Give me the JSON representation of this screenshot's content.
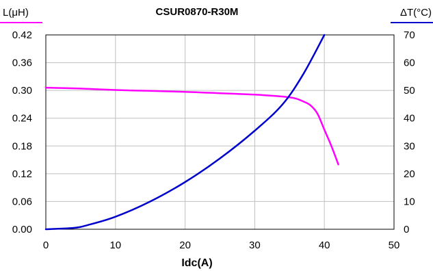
{
  "chart_data": {
    "type": "line",
    "title": "CSUR0870-R30M",
    "xlabel": "Idc(A)",
    "ylabel_left": "L(μH)",
    "ylabel_right": "ΔT(°C)",
    "xlim": [
      0,
      50
    ],
    "ylim_left": [
      0,
      0.42
    ],
    "ylim_right": [
      0,
      70
    ],
    "x_ticks": [
      "0",
      "10",
      "20",
      "30",
      "40",
      "50"
    ],
    "y_left_ticks": [
      "0.00",
      "0.06",
      "0.12",
      "0.18",
      "0.24",
      "0.30",
      "0.36",
      "0.42"
    ],
    "y_right_ticks": [
      "0",
      "10",
      "20",
      "30",
      "40",
      "50",
      "60",
      "70"
    ],
    "grid": true,
    "colors": {
      "inductance": "#ff00ff",
      "temperature": "#0000cc",
      "grid": "#c0c0c0",
      "axis": "#000000"
    },
    "series": [
      {
        "key": "inductance",
        "axis": "left",
        "x": [
          0,
          5,
          10,
          15,
          20,
          25,
          30,
          33,
          35,
          36,
          37,
          38,
          39,
          40,
          41,
          42
        ],
        "values": [
          0.306,
          0.304,
          0.301,
          0.299,
          0.297,
          0.294,
          0.291,
          0.288,
          0.285,
          0.282,
          0.276,
          0.268,
          0.25,
          0.215,
          0.18,
          0.14
        ]
      },
      {
        "key": "temperature",
        "axis": "right",
        "x": [
          0,
          4,
          6,
          10,
          15,
          20,
          25,
          30,
          34,
          37,
          40
        ],
        "values": [
          0,
          0.5,
          1.5,
          4.5,
          10,
          17,
          25.5,
          35.5,
          45,
          56,
          70
        ]
      }
    ]
  }
}
